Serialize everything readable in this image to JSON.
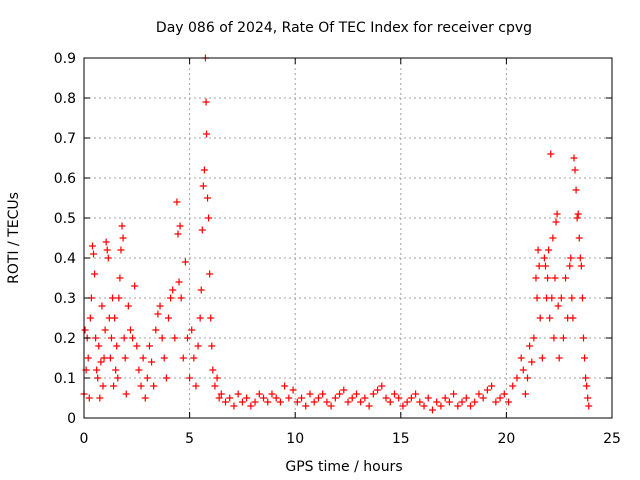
{
  "chart_data": {
    "type": "scatter",
    "title": "Day 086 of 2024, Rate Of TEC Index for receiver cpvg",
    "xlabel": "GPS time / hours",
    "ylabel": "ROTI / TECUs",
    "xlim": [
      0,
      25
    ],
    "ylim": [
      0,
      0.9
    ],
    "xticks": [
      "0",
      "5",
      "10",
      "15",
      "20",
      "25"
    ],
    "yticks": [
      "0",
      "0.1",
      "0.2",
      "0.3",
      "0.4",
      "0.5",
      "0.6",
      "0.7",
      "0.8",
      "0.9"
    ],
    "grid": true,
    "marker": "+",
    "color": "#ff0000",
    "series": [
      {
        "name": "ROTI",
        "points": [
          [
            0.0,
            0.06
          ],
          [
            0.05,
            0.22
          ],
          [
            0.1,
            0.12
          ],
          [
            0.15,
            0.2
          ],
          [
            0.2,
            0.15
          ],
          [
            0.25,
            0.05
          ],
          [
            0.3,
            0.25
          ],
          [
            0.35,
            0.3
          ],
          [
            0.4,
            0.43
          ],
          [
            0.45,
            0.41
          ],
          [
            0.5,
            0.36
          ],
          [
            0.55,
            0.2
          ],
          [
            0.6,
            0.12
          ],
          [
            0.65,
            0.1
          ],
          [
            0.7,
            0.18
          ],
          [
            0.75,
            0.05
          ],
          [
            0.8,
            0.14
          ],
          [
            0.85,
            0.28
          ],
          [
            0.9,
            0.08
          ],
          [
            0.95,
            0.15
          ],
          [
            1.0,
            0.22
          ],
          [
            1.05,
            0.44
          ],
          [
            1.1,
            0.42
          ],
          [
            1.15,
            0.4
          ],
          [
            1.2,
            0.25
          ],
          [
            1.25,
            0.15
          ],
          [
            1.3,
            0.2
          ],
          [
            1.35,
            0.3
          ],
          [
            1.4,
            0.08
          ],
          [
            1.45,
            0.25
          ],
          [
            1.5,
            0.12
          ],
          [
            1.55,
            0.18
          ],
          [
            1.6,
            0.1
          ],
          [
            1.65,
            0.3
          ],
          [
            1.7,
            0.35
          ],
          [
            1.75,
            0.42
          ],
          [
            1.8,
            0.48
          ],
          [
            1.85,
            0.45
          ],
          [
            1.9,
            0.2
          ],
          [
            1.95,
            0.15
          ],
          [
            2.0,
            0.06
          ],
          [
            2.1,
            0.28
          ],
          [
            2.2,
            0.22
          ],
          [
            2.3,
            0.2
          ],
          [
            2.4,
            0.33
          ],
          [
            2.5,
            0.18
          ],
          [
            2.6,
            0.12
          ],
          [
            2.7,
            0.08
          ],
          [
            2.8,
            0.15
          ],
          [
            2.9,
            0.05
          ],
          [
            3.0,
            0.1
          ],
          [
            3.1,
            0.18
          ],
          [
            3.2,
            0.14
          ],
          [
            3.3,
            0.08
          ],
          [
            3.4,
            0.22
          ],
          [
            3.5,
            0.26
          ],
          [
            3.6,
            0.28
          ],
          [
            3.7,
            0.2
          ],
          [
            3.8,
            0.15
          ],
          [
            3.9,
            0.1
          ],
          [
            4.0,
            0.25
          ],
          [
            4.1,
            0.3
          ],
          [
            4.2,
            0.32
          ],
          [
            4.3,
            0.2
          ],
          [
            4.4,
            0.54
          ],
          [
            4.45,
            0.46
          ],
          [
            4.5,
            0.34
          ],
          [
            4.55,
            0.48
          ],
          [
            4.6,
            0.3
          ],
          [
            4.7,
            0.15
          ],
          [
            4.8,
            0.39
          ],
          [
            4.9,
            0.2
          ],
          [
            5.0,
            0.1
          ],
          [
            5.1,
            0.22
          ],
          [
            5.2,
            0.15
          ],
          [
            5.3,
            0.08
          ],
          [
            5.4,
            0.18
          ],
          [
            5.5,
            0.25
          ],
          [
            5.55,
            0.32
          ],
          [
            5.6,
            0.47
          ],
          [
            5.65,
            0.58
          ],
          [
            5.7,
            0.62
          ],
          [
            5.75,
            0.9
          ],
          [
            5.78,
            0.79
          ],
          [
            5.8,
            0.71
          ],
          [
            5.85,
            0.55
          ],
          [
            5.9,
            0.5
          ],
          [
            5.95,
            0.36
          ],
          [
            6.0,
            0.25
          ],
          [
            6.05,
            0.18
          ],
          [
            6.1,
            0.12
          ],
          [
            6.2,
            0.08
          ],
          [
            6.3,
            0.1
          ],
          [
            6.4,
            0.05
          ],
          [
            6.5,
            0.06
          ],
          [
            6.7,
            0.04
          ],
          [
            6.9,
            0.05
          ],
          [
            7.1,
            0.03
          ],
          [
            7.3,
            0.06
          ],
          [
            7.5,
            0.04
          ],
          [
            7.7,
            0.05
          ],
          [
            7.9,
            0.03
          ],
          [
            8.1,
            0.04
          ],
          [
            8.3,
            0.06
          ],
          [
            8.5,
            0.05
          ],
          [
            8.7,
            0.04
          ],
          [
            8.9,
            0.06
          ],
          [
            9.1,
            0.05
          ],
          [
            9.3,
            0.04
          ],
          [
            9.5,
            0.08
          ],
          [
            9.7,
            0.05
          ],
          [
            9.9,
            0.07
          ],
          [
            10.1,
            0.04
          ],
          [
            10.3,
            0.05
          ],
          [
            10.5,
            0.03
          ],
          [
            10.7,
            0.06
          ],
          [
            10.9,
            0.04
          ],
          [
            11.1,
            0.05
          ],
          [
            11.3,
            0.06
          ],
          [
            11.5,
            0.04
          ],
          [
            11.7,
            0.03
          ],
          [
            11.9,
            0.05
          ],
          [
            12.1,
            0.06
          ],
          [
            12.3,
            0.07
          ],
          [
            12.5,
            0.04
          ],
          [
            12.7,
            0.05
          ],
          [
            12.9,
            0.06
          ],
          [
            13.1,
            0.04
          ],
          [
            13.3,
            0.05
          ],
          [
            13.5,
            0.03
          ],
          [
            13.7,
            0.06
          ],
          [
            13.9,
            0.07
          ],
          [
            14.1,
            0.08
          ],
          [
            14.3,
            0.05
          ],
          [
            14.5,
            0.04
          ],
          [
            14.7,
            0.06
          ],
          [
            14.9,
            0.05
          ],
          [
            15.1,
            0.03
          ],
          [
            15.3,
            0.04
          ],
          [
            15.5,
            0.05
          ],
          [
            15.7,
            0.06
          ],
          [
            15.9,
            0.04
          ],
          [
            16.1,
            0.03
          ],
          [
            16.3,
            0.05
          ],
          [
            16.5,
            0.02
          ],
          [
            16.7,
            0.04
          ],
          [
            16.9,
            0.03
          ],
          [
            17.1,
            0.05
          ],
          [
            17.3,
            0.04
          ],
          [
            17.5,
            0.06
          ],
          [
            17.7,
            0.03
          ],
          [
            17.9,
            0.04
          ],
          [
            18.1,
            0.05
          ],
          [
            18.3,
            0.03
          ],
          [
            18.5,
            0.04
          ],
          [
            18.7,
            0.06
          ],
          [
            18.9,
            0.05
          ],
          [
            19.1,
            0.07
          ],
          [
            19.3,
            0.08
          ],
          [
            19.5,
            0.04
          ],
          [
            19.7,
            0.05
          ],
          [
            19.9,
            0.06
          ],
          [
            20.1,
            0.04
          ],
          [
            20.3,
            0.08
          ],
          [
            20.5,
            0.1
          ],
          [
            20.7,
            0.15
          ],
          [
            20.8,
            0.12
          ],
          [
            20.9,
            0.06
          ],
          [
            21.0,
            0.1
          ],
          [
            21.1,
            0.18
          ],
          [
            21.2,
            0.14
          ],
          [
            21.3,
            0.2
          ],
          [
            21.4,
            0.35
          ],
          [
            21.45,
            0.3
          ],
          [
            21.5,
            0.42
          ],
          [
            21.55,
            0.38
          ],
          [
            21.6,
            0.25
          ],
          [
            21.7,
            0.15
          ],
          [
            21.8,
            0.4
          ],
          [
            21.85,
            0.38
          ],
          [
            21.9,
            0.3
          ],
          [
            21.95,
            0.35
          ],
          [
            22.0,
            0.42
          ],
          [
            22.05,
            0.25
          ],
          [
            22.1,
            0.66
          ],
          [
            22.15,
            0.3
          ],
          [
            22.2,
            0.45
          ],
          [
            22.25,
            0.2
          ],
          [
            22.3,
            0.35
          ],
          [
            22.35,
            0.49
          ],
          [
            22.4,
            0.51
          ],
          [
            22.45,
            0.28
          ],
          [
            22.5,
            0.15
          ],
          [
            22.6,
            0.3
          ],
          [
            22.7,
            0.2
          ],
          [
            22.8,
            0.35
          ],
          [
            22.9,
            0.25
          ],
          [
            23.0,
            0.38
          ],
          [
            23.05,
            0.4
          ],
          [
            23.1,
            0.3
          ],
          [
            23.15,
            0.25
          ],
          [
            23.2,
            0.65
          ],
          [
            23.25,
            0.62
          ],
          [
            23.3,
            0.57
          ],
          [
            23.35,
            0.5
          ],
          [
            23.4,
            0.51
          ],
          [
            23.45,
            0.45
          ],
          [
            23.5,
            0.4
          ],
          [
            23.55,
            0.38
          ],
          [
            23.6,
            0.3
          ],
          [
            23.65,
            0.2
          ],
          [
            23.7,
            0.15
          ],
          [
            23.75,
            0.1
          ],
          [
            23.8,
            0.08
          ],
          [
            23.85,
            0.05
          ],
          [
            23.9,
            0.03
          ]
        ]
      }
    ]
  }
}
